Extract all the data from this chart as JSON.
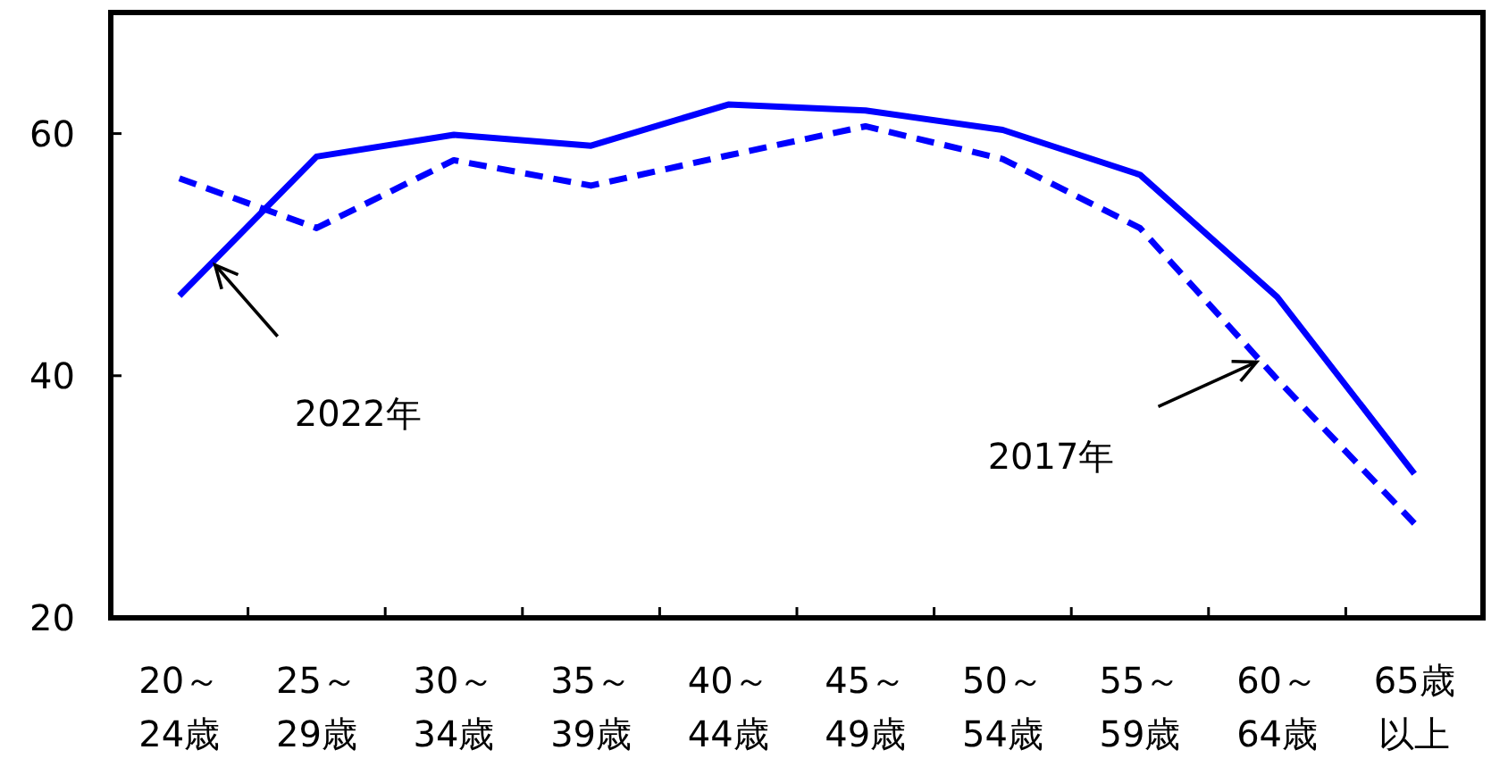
{
  "chart_data": {
    "type": "line",
    "categories": [
      "20～24歳",
      "25～29歳",
      "30～34歳",
      "35～39歳",
      "40～44歳",
      "45～49歳",
      "50～54歳",
      "55～59歳",
      "60～64歳",
      "65歳以上"
    ],
    "series": [
      {
        "color": "#0000ff",
        "line_style": "solid",
        "values": [
          46.6,
          58.1,
          59.9,
          59.0,
          62.4,
          61.9,
          60.3,
          56.6,
          46.5,
          31.9
        ]
      },
      {
        "color": "#0000ff",
        "line_style": "dashed",
        "values": [
          56.3,
          52.2,
          57.8,
          55.7,
          58.2,
          60.6,
          57.9,
          52.2,
          39.7,
          27.8
        ]
      }
    ],
    "ylim": [
      20,
      70
    ],
    "yticks": [
      20,
      40,
      60
    ],
    "grid": false,
    "annotations": [
      "2022年",
      "2017年"
    ]
  }
}
